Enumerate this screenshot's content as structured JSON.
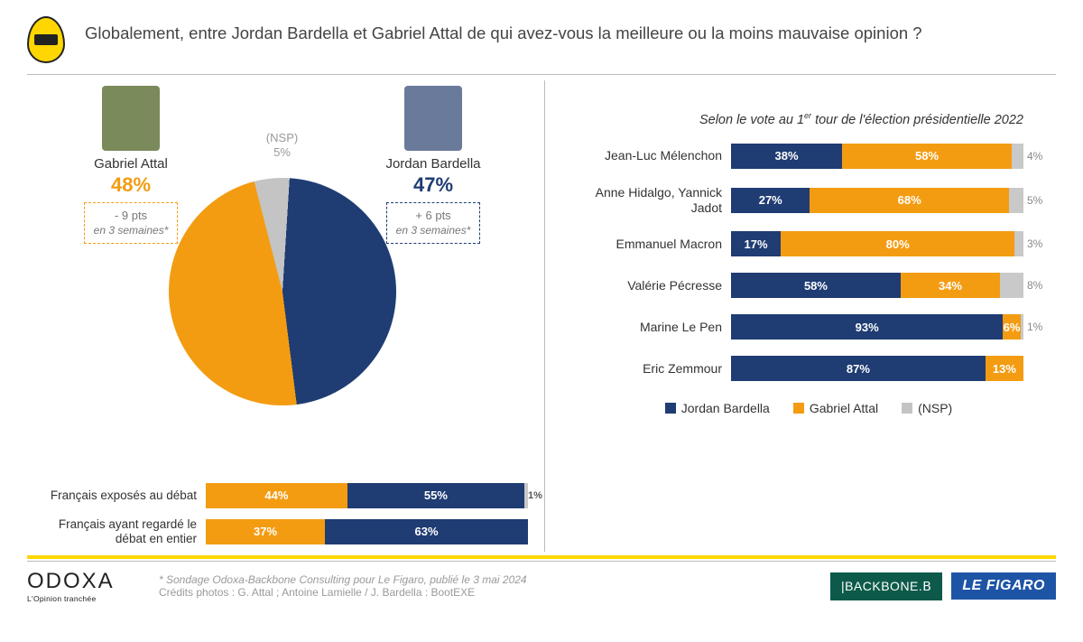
{
  "colors": {
    "navy": "#1f3c73",
    "orange": "#f39c12",
    "gray": "#c4c4c4",
    "lightgray": "#c9c9c9",
    "photo_attal": "#7a8a5a",
    "photo_bardella": "#6a7a9a"
  },
  "title": "Globalement, entre Jordan Bardella et Gabriel Attal de qui avez-vous la meilleure ou la moins mauvaise opinion ?",
  "pie": {
    "type": "pie",
    "slices": [
      {
        "label": "Gabriel Attal",
        "value": 48,
        "color": "#f39c12"
      },
      {
        "label": "Jordan Bardella",
        "value": 47,
        "color": "#1f3c73"
      },
      {
        "label": "(NSP)",
        "value": 5,
        "color": "#c4c4c4"
      }
    ],
    "nsp_label": "(NSP)",
    "nsp_value": "5%"
  },
  "candidates": {
    "left": {
      "name": "Gabriel Attal",
      "pct": "48%",
      "pct_color": "#f39c12",
      "delta_pts": "- 9 pts",
      "delta_sub": "en 3 semaines*",
      "delta_border": "orange"
    },
    "right": {
      "name": "Jordan Bardella",
      "pct": "47%",
      "pct_color": "#1f3c73",
      "delta_pts": "+ 6 pts",
      "delta_sub": "en 3 semaines*",
      "delta_border": "navy"
    }
  },
  "sub_bars": [
    {
      "label": "Français exposés au débat",
      "attal": 44,
      "bardella": 55,
      "nsp": 1
    },
    {
      "label": "Français ayant regardé le débat en entier",
      "attal": 37,
      "bardella": 63,
      "nsp": 0
    }
  ],
  "right_title_pre": "Selon le vote au 1",
  "right_title_sup": "er",
  "right_title_post": " tour de l'élection présidentielle 2022",
  "vote_rows": [
    {
      "label": "Jean-Luc Mélenchon",
      "bardella": 38,
      "attal": 58,
      "nsp": 4
    },
    {
      "label": "Anne Hidalgo, Yannick Jadot",
      "bardella": 27,
      "attal": 68,
      "nsp": 5
    },
    {
      "label": "Emmanuel Macron",
      "bardella": 17,
      "attal": 80,
      "nsp": 3
    },
    {
      "label": "Valérie Pécresse",
      "bardella": 58,
      "attal": 34,
      "nsp": 8
    },
    {
      "label": "Marine Le Pen",
      "bardella": 93,
      "attal": 6,
      "nsp": 1
    },
    {
      "label": "Eric Zemmour",
      "bardella": 87,
      "attal": 13,
      "nsp": 0
    }
  ],
  "legend": {
    "bardella": "Jordan Bardella",
    "attal": "Gabriel Attal",
    "nsp": "(NSP)"
  },
  "footer": {
    "odoxa_name": "ODOXA",
    "odoxa_tag": "L'Opinion tranchée",
    "source": "* Sondage Odoxa-Backbone Consulting pour Le Figaro, publié le 3 mai 2024",
    "credits": "Crédits photos  : G. Attal ;  Antoine Lamielle / J. Bardella : BootEXE",
    "backbone": "|BACKBONE.",
    "backbone_suffix": "𝖡",
    "figaro": "LE FIGARO"
  }
}
